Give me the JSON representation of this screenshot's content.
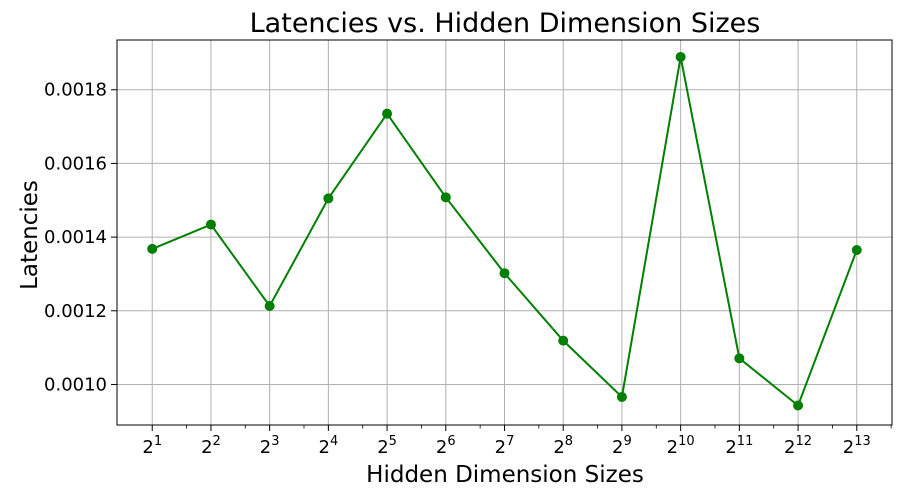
{
  "chart_data": {
    "type": "line",
    "title": "Latencies vs. Hidden Dimension Sizes",
    "xlabel": "Hidden Dimension Sizes",
    "ylabel": "Latencies",
    "x_scale": "log2",
    "x": [
      2,
      4,
      8,
      16,
      32,
      64,
      128,
      256,
      512,
      1024,
      2048,
      4096,
      8192
    ],
    "x_tick_base": "2",
    "x_tick_exponents": [
      "1",
      "2",
      "3",
      "4",
      "5",
      "6",
      "7",
      "8",
      "9",
      "10",
      "11",
      "12",
      "13"
    ],
    "y_ticks": [
      "0.0010",
      "0.0012",
      "0.0014",
      "0.0016",
      "0.0018"
    ],
    "y_tick_values": [
      0.001,
      0.0012,
      0.0014,
      0.0016,
      0.0018
    ],
    "ylim": [
      0.00089,
      0.001935
    ],
    "series": [
      {
        "color": "#008000",
        "marker": "circle",
        "values": [
          0.001368,
          0.001434,
          0.001213,
          0.001505,
          0.001735,
          0.001508,
          0.001302,
          0.001119,
          0.000966,
          0.001889,
          0.001071,
          0.000943,
          0.001365
        ]
      }
    ],
    "grid": true,
    "legend": "none"
  }
}
